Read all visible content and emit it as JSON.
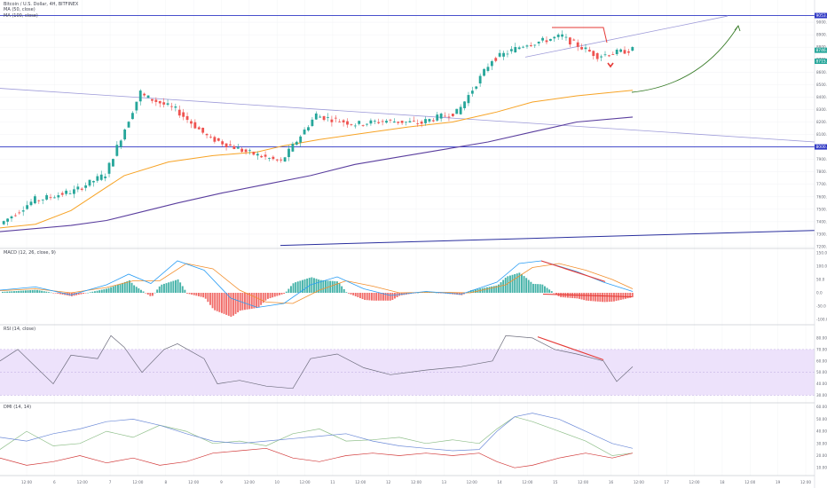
{
  "header": {
    "symbol_line": "Bitcoin / U.S. Dollar, 4H, BITFINEX",
    "ma_fast_label": "MA (50, close)",
    "ma_slow_label": "MA (100, close)"
  },
  "panes": {
    "macd_label": "MACD (12, 26, close, 9)",
    "rsi_label": "RSI (14, close)",
    "dmi_label": "DMI (14, 14)"
  },
  "colors": {
    "up": "#26a69a",
    "down": "#ef5350",
    "ma_fast": "#f7a325",
    "ma_slow": "#5a3e9e",
    "trendline": "#9e9bd9",
    "horizontal": "#2e37c4",
    "annotation_red": "#e53935",
    "arrow_green": "#3a7d2a",
    "macd_line": "#2a9df4",
    "signal_line": "#f28e2c",
    "rsi_band": "#ede2fb",
    "rsi_line": "#6d6d7d",
    "di_plus": "#8fbf8a",
    "di_minus": "#d23b3b",
    "adx": "#6d8bd8"
  },
  "price_badges": [
    "9053.6",
    "8746.9",
    "8715.7",
    "8000.0"
  ],
  "chart_data": [
    {
      "type": "candlestick",
      "title": "Bitcoin / U.S. Dollar, 4H, BITFINEX",
      "ylim": [
        7200,
        9150
      ],
      "y_ticks": [
        "9000.0",
        "8900.0",
        "8800.0",
        "8700.0",
        "8600.0",
        "8500.0",
        "8400.0",
        "8300.0",
        "8200.0",
        "8100.0",
        "8000.0",
        "7900.0",
        "7800.0",
        "7700.0",
        "7600.0",
        "7500.0",
        "7400.0",
        "7300.0",
        "7200.0"
      ],
      "x_ticks": [
        "12:00",
        "6",
        "12:00",
        "7",
        "12:00",
        "8",
        "12:00",
        "9",
        "12:00",
        "10",
        "12:00",
        "11",
        "12:00",
        "12",
        "12:00",
        "13",
        "12:00",
        "14",
        "12:00",
        "15",
        "12:00",
        "16",
        "12:00",
        "17",
        "12:00",
        "18",
        "12:00",
        "19",
        "12:00"
      ],
      "segments": [
        [
          7380,
          7580
        ],
        [
          7570,
          7640
        ],
        [
          7630,
          7780
        ],
        [
          7780,
          8440
        ],
        [
          8420,
          8300
        ],
        [
          8300,
          8060
        ],
        [
          8070,
          7960
        ],
        [
          7960,
          7880
        ],
        [
          7880,
          8260
        ],
        [
          8250,
          8190
        ],
        [
          8180,
          8210
        ],
        [
          8210,
          8190
        ],
        [
          8200,
          8280
        ],
        [
          8270,
          8700
        ],
        [
          8700,
          8830
        ],
        [
          8820,
          8890
        ],
        [
          8880,
          8730
        ],
        [
          8730,
          8780
        ]
      ],
      "candles_per_segment": 9,
      "ma_fast": [
        [
          0,
          7350
        ],
        [
          40,
          7380
        ],
        [
          80,
          7490
        ],
        [
          110,
          7630
        ],
        [
          140,
          7770
        ],
        [
          190,
          7880
        ],
        [
          240,
          7930
        ],
        [
          290,
          7960
        ],
        [
          320,
          8010
        ],
        [
          360,
          8060
        ],
        [
          410,
          8110
        ],
        [
          460,
          8160
        ],
        [
          510,
          8200
        ],
        [
          560,
          8280
        ],
        [
          600,
          8360
        ],
        [
          650,
          8410
        ],
        [
          713,
          8455
        ]
      ],
      "ma_slow": [
        [
          0,
          7320
        ],
        [
          80,
          7370
        ],
        [
          120,
          7410
        ],
        [
          160,
          7480
        ],
        [
          200,
          7550
        ],
        [
          250,
          7630
        ],
        [
          300,
          7700
        ],
        [
          350,
          7770
        ],
        [
          400,
          7860
        ],
        [
          450,
          7920
        ],
        [
          500,
          7980
        ],
        [
          550,
          8040
        ],
        [
          600,
          8120
        ],
        [
          650,
          8200
        ],
        [
          713,
          8240
        ]
      ],
      "series": [
        {
          "name": "MA (50, close)"
        },
        {
          "name": "MA (100, close)"
        }
      ]
    },
    {
      "type": "bar",
      "title": "MACD (12, 26, close, 9)",
      "ylim": [
        -120,
        160
      ],
      "y_ticks": [
        "150.0",
        "100.0",
        "50.0",
        "0.0",
        "-50.0",
        "-100.0"
      ],
      "macd_points": [
        [
          0,
          10
        ],
        [
          40,
          22
        ],
        [
          80,
          -8
        ],
        [
          120,
          30
        ],
        [
          145,
          70
        ],
        [
          170,
          35
        ],
        [
          200,
          120
        ],
        [
          230,
          85
        ],
        [
          260,
          -20
        ],
        [
          290,
          -55
        ],
        [
          320,
          -40
        ],
        [
          350,
          30
        ],
        [
          380,
          60
        ],
        [
          410,
          15
        ],
        [
          440,
          -10
        ],
        [
          480,
          5
        ],
        [
          520,
          -5
        ],
        [
          560,
          40
        ],
        [
          585,
          110
        ],
        [
          610,
          120
        ],
        [
          650,
          80
        ],
        [
          680,
          40
        ],
        [
          713,
          5
        ]
      ],
      "signal_points": [
        [
          0,
          8
        ],
        [
          40,
          15
        ],
        [
          80,
          0
        ],
        [
          120,
          20
        ],
        [
          150,
          45
        ],
        [
          180,
          45
        ],
        [
          210,
          110
        ],
        [
          240,
          90
        ],
        [
          270,
          10
        ],
        [
          300,
          -35
        ],
        [
          330,
          -40
        ],
        [
          360,
          10
        ],
        [
          390,
          45
        ],
        [
          420,
          25
        ],
        [
          450,
          0
        ],
        [
          490,
          2
        ],
        [
          530,
          0
        ],
        [
          570,
          30
        ],
        [
          600,
          95
        ],
        [
          630,
          110
        ],
        [
          660,
          85
        ],
        [
          690,
          50
        ],
        [
          713,
          15
        ]
      ]
    },
    {
      "type": "line",
      "title": "RSI (14, close)",
      "ylim": [
        25,
        90
      ],
      "band": [
        30,
        70
      ],
      "y_ticks": [
        "80.00",
        "70.00",
        "60.00",
        "50.00",
        "40.00",
        "30.00"
      ],
      "series": [
        {
          "name": "RSI",
          "points": [
            [
              0,
              60
            ],
            [
              20,
              70
            ],
            [
              40,
              55
            ],
            [
              60,
              40
            ],
            [
              80,
              65
            ],
            [
              110,
              62
            ],
            [
              125,
              82
            ],
            [
              140,
              72
            ],
            [
              160,
              50
            ],
            [
              185,
              70
            ],
            [
              200,
              75
            ],
            [
              230,
              62
            ],
            [
              245,
              40
            ],
            [
              270,
              43
            ],
            [
              300,
              38
            ],
            [
              330,
              36
            ],
            [
              350,
              62
            ],
            [
              380,
              66
            ],
            [
              410,
              54
            ],
            [
              440,
              48
            ],
            [
              480,
              52
            ],
            [
              520,
              55
            ],
            [
              555,
              60
            ],
            [
              570,
              82
            ],
            [
              600,
              80
            ],
            [
              625,
              70
            ],
            [
              650,
              66
            ],
            [
              680,
              60
            ],
            [
              695,
              42
            ],
            [
              713,
              55
            ]
          ]
        }
      ]
    },
    {
      "type": "line",
      "title": "DMI (14, 14)",
      "ylim": [
        5,
        62
      ],
      "y_ticks": [
        "60.0000",
        "50.0000",
        "40.0000",
        "30.0000",
        "20.0000",
        "10.0000"
      ],
      "series": [
        {
          "name": "+DI",
          "points": [
            [
              0,
              25
            ],
            [
              30,
              40
            ],
            [
              60,
              28
            ],
            [
              90,
              30
            ],
            [
              120,
              40
            ],
            [
              150,
              35
            ],
            [
              180,
              45
            ],
            [
              210,
              40
            ],
            [
              240,
              30
            ],
            [
              270,
              32
            ],
            [
              300,
              28
            ],
            [
              330,
              38
            ],
            [
              360,
              42
            ],
            [
              390,
              32
            ],
            [
              420,
              33
            ],
            [
              450,
              35
            ],
            [
              480,
              30
            ],
            [
              510,
              33
            ],
            [
              540,
              30
            ],
            [
              560,
              42
            ],
            [
              580,
              52
            ],
            [
              600,
              48
            ],
            [
              630,
              40
            ],
            [
              660,
              32
            ],
            [
              690,
              20
            ],
            [
              713,
              22
            ]
          ]
        },
        {
          "name": "-DI",
          "points": [
            [
              0,
              18
            ],
            [
              30,
              12
            ],
            [
              60,
              15
            ],
            [
              90,
              20
            ],
            [
              120,
              14
            ],
            [
              150,
              18
            ],
            [
              180,
              12
            ],
            [
              210,
              15
            ],
            [
              240,
              22
            ],
            [
              270,
              24
            ],
            [
              300,
              26
            ],
            [
              330,
              18
            ],
            [
              360,
              15
            ],
            [
              390,
              20
            ],
            [
              420,
              22
            ],
            [
              450,
              20
            ],
            [
              480,
              22
            ],
            [
              510,
              20
            ],
            [
              540,
              22
            ],
            [
              560,
              15
            ],
            [
              580,
              10
            ],
            [
              600,
              12
            ],
            [
              630,
              18
            ],
            [
              660,
              22
            ],
            [
              690,
              18
            ],
            [
              713,
              22
            ]
          ]
        },
        {
          "name": "ADX",
          "points": [
            [
              0,
              35
            ],
            [
              30,
              32
            ],
            [
              60,
              38
            ],
            [
              90,
              42
            ],
            [
              120,
              48
            ],
            [
              150,
              50
            ],
            [
              180,
              45
            ],
            [
              210,
              38
            ],
            [
              240,
              32
            ],
            [
              270,
              30
            ],
            [
              300,
              32
            ],
            [
              330,
              34
            ],
            [
              360,
              36
            ],
            [
              390,
              38
            ],
            [
              420,
              32
            ],
            [
              450,
              28
            ],
            [
              480,
              26
            ],
            [
              510,
              24
            ],
            [
              540,
              25
            ],
            [
              560,
              40
            ],
            [
              580,
              52
            ],
            [
              600,
              55
            ],
            [
              630,
              50
            ],
            [
              660,
              40
            ],
            [
              690,
              30
            ],
            [
              713,
              26
            ]
          ]
        }
      ]
    }
  ]
}
